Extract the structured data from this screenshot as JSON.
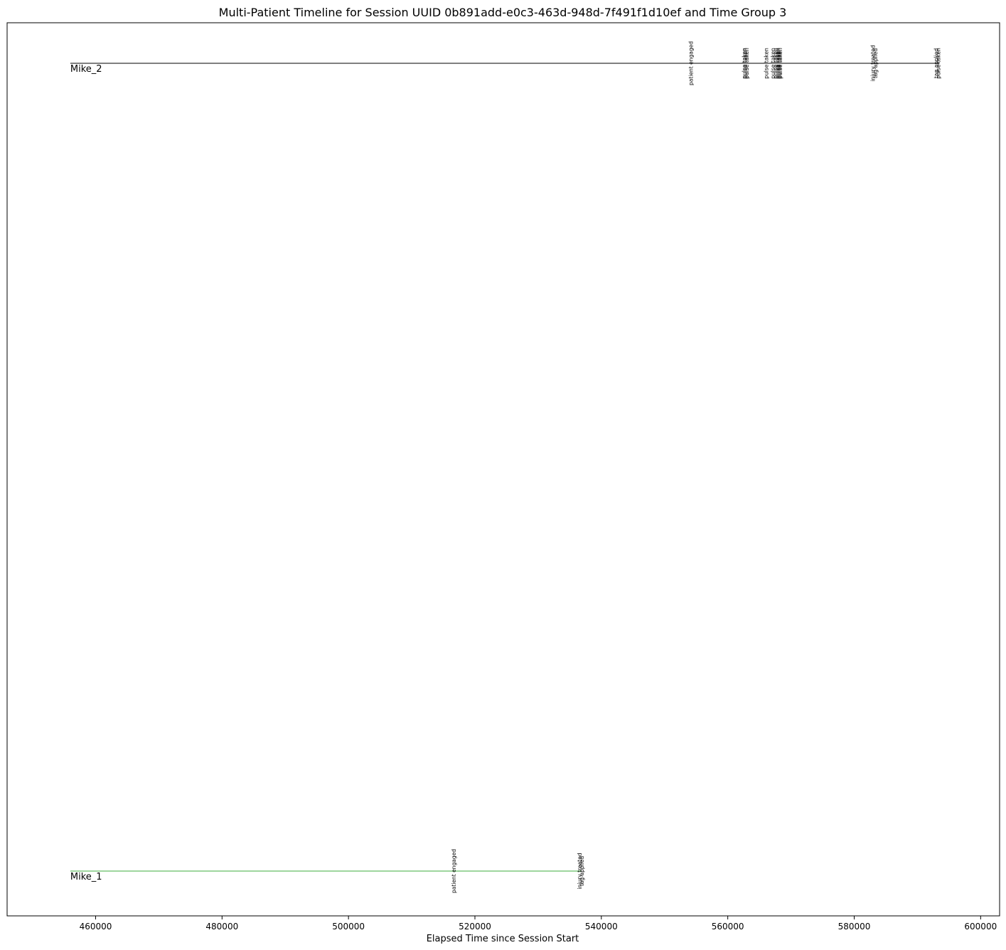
{
  "chart_data": {
    "type": "timeline",
    "title": "Multi-Patient Timeline for Session UUID 0b891add-e0c3-463d-948d-7f491f1d10ef and Time Group 3",
    "xlabel": "Elapsed Time since Session Start",
    "ylabel": "",
    "xlim": [
      446000,
      603000
    ],
    "xticks": [
      460000,
      480000,
      500000,
      520000,
      540000,
      560000,
      580000,
      600000
    ],
    "grid": false,
    "patients": [
      {
        "name": "Mike_2",
        "color": "#555555",
        "start": 456000,
        "end": 593500,
        "events": [
          {
            "x": 554200,
            "label": "patient engaged"
          },
          {
            "x": 562600,
            "label": "pulse taken"
          },
          {
            "x": 562800,
            "label": "pulse taken"
          },
          {
            "x": 563000,
            "label": "pulse taken"
          },
          {
            "x": 566100,
            "label": "pulse taken"
          },
          {
            "x": 567200,
            "label": "pulse taken"
          },
          {
            "x": 567600,
            "label": "pulse taken"
          },
          {
            "x": 567850,
            "label": "pulse taken"
          },
          {
            "x": 568000,
            "label": "pulse taken"
          },
          {
            "x": 568150,
            "label": "pulse taken"
          },
          {
            "x": 568300,
            "label": "pulse taken"
          },
          {
            "x": 583000,
            "label": "injury treated"
          },
          {
            "x": 583350,
            "label": "tag applied"
          },
          {
            "x": 593000,
            "label": "tag applied"
          },
          {
            "x": 593300,
            "label": "pulse taken"
          }
        ]
      },
      {
        "name": "Mike_1",
        "color": "#7fc97f",
        "start": 456000,
        "end": 536800,
        "events": [
          {
            "x": 516700,
            "label": "patient engaged"
          },
          {
            "x": 536600,
            "label": "injury treated"
          },
          {
            "x": 536900,
            "label": "tag applied"
          }
        ]
      }
    ]
  }
}
